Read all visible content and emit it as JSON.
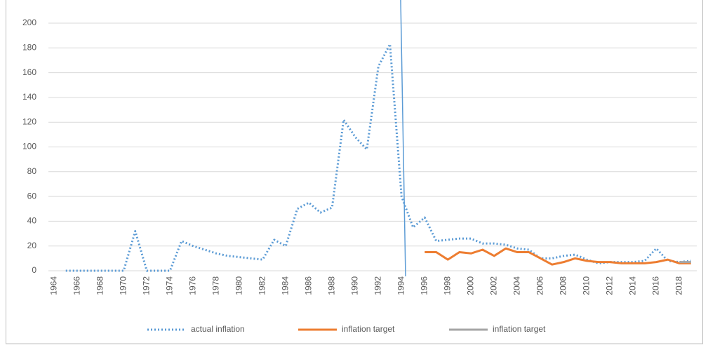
{
  "chart_data": {
    "type": "line",
    "categories": [
      "1964",
      null,
      "1966",
      null,
      "1968",
      null,
      "1970",
      null,
      "1972",
      null,
      "1974",
      null,
      "1976",
      null,
      "1978",
      null,
      "1980",
      null,
      "1982",
      null,
      "1984",
      null,
      "1986",
      null,
      "1988",
      null,
      "1990",
      null,
      "1992",
      null,
      "1994",
      null,
      "1996",
      null,
      "1998",
      null,
      "2000",
      null,
      "2002",
      null,
      "2004",
      null,
      "2006",
      null,
      "2008",
      null,
      "2010",
      null,
      "2012",
      null,
      "2014",
      null,
      "2016",
      null,
      "2018",
      null
    ],
    "series": [
      {
        "name": "actual inflation",
        "color": "#5b9bd5",
        "dash": true,
        "values": [
          null,
          0,
          0,
          0,
          0,
          0,
          0,
          32,
          0,
          0,
          0,
          24,
          20,
          17,
          14,
          12,
          11,
          10,
          9,
          25,
          20,
          50,
          55,
          47,
          51,
          122,
          108,
          98,
          165,
          183,
          60,
          35,
          43,
          24,
          25,
          26,
          26,
          22,
          22,
          21,
          18,
          17,
          10,
          10,
          12,
          13,
          9,
          6,
          7,
          7,
          7,
          8,
          18,
          8,
          7,
          8
        ]
      },
      {
        "name": "inflation target",
        "color": "#ed7d31",
        "values": [
          null,
          null,
          null,
          null,
          null,
          null,
          null,
          null,
          null,
          null,
          null,
          null,
          null,
          null,
          null,
          null,
          null,
          null,
          null,
          null,
          null,
          null,
          null,
          null,
          null,
          null,
          null,
          null,
          null,
          null,
          null,
          null,
          15,
          15,
          9,
          15,
          14,
          17,
          12,
          18,
          15,
          15,
          10,
          5,
          7,
          10,
          8,
          7,
          7,
          6,
          6,
          6,
          7,
          9,
          6,
          6
        ]
      },
      {
        "name": "inflation target",
        "color": "#a5a5a5",
        "values": [
          null,
          null,
          null,
          null,
          null,
          null,
          null,
          null,
          null,
          null,
          null,
          null,
          null,
          null,
          null,
          null,
          null,
          null,
          null,
          null,
          null,
          null,
          null,
          null,
          null,
          null,
          null,
          null,
          null,
          null,
          null,
          null,
          null,
          null,
          null,
          null,
          null,
          null,
          null,
          null,
          null,
          null,
          null,
          null,
          null,
          null,
          null,
          null,
          null,
          null,
          null,
          null,
          null,
          null,
          7,
          7
        ]
      }
    ],
    "ylim": [
      0,
      200
    ],
    "yticks": [
      0,
      20,
      40,
      60,
      80,
      100,
      120,
      140,
      160,
      180,
      200
    ],
    "grid": true,
    "legend": "bottom"
  }
}
